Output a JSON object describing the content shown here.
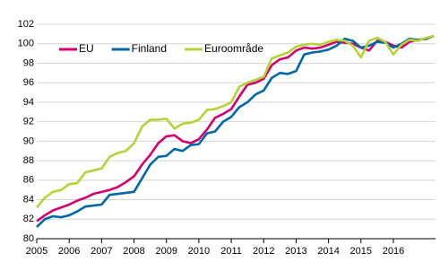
{
  "chart_data": {
    "type": "line",
    "x": [
      2005,
      2005.25,
      2005.5,
      2005.75,
      2006,
      2006.25,
      2006.5,
      2006.75,
      2007,
      2007.25,
      2007.5,
      2007.75,
      2008,
      2008.25,
      2008.5,
      2008.75,
      2009,
      2009.25,
      2009.5,
      2009.75,
      2010,
      2010.25,
      2010.5,
      2010.75,
      2011,
      2011.25,
      2011.5,
      2011.75,
      2012,
      2012.25,
      2012.5,
      2012.75,
      2013,
      2013.25,
      2013.5,
      2013.75,
      2014,
      2014.25,
      2014.5,
      2014.75,
      2015,
      2015.25,
      2015.5,
      2015.75,
      2016,
      2016.25,
      2016.5,
      2016.75,
      2017,
      2017.25
    ],
    "series": [
      {
        "name": "EU",
        "color": "#d4006f",
        "values": [
          81.8,
          82.4,
          82.9,
          83.2,
          83.5,
          83.9,
          84.2,
          84.6,
          84.8,
          85.0,
          85.3,
          85.8,
          86.4,
          87.6,
          88.6,
          89.8,
          90.5,
          90.6,
          90.0,
          89.8,
          90.2,
          91.2,
          92.4,
          92.8,
          93.3,
          94.6,
          95.8,
          96.0,
          96.4,
          97.8,
          98.4,
          98.6,
          99.3,
          99.6,
          99.5,
          99.6,
          99.9,
          100.2,
          100.1,
          100.0,
          99.6,
          99.3,
          100.3,
          100.2,
          99.8,
          99.6,
          100.2,
          100.4,
          100.5,
          100.8
        ]
      },
      {
        "name": "Finland",
        "color": "#0068a6",
        "values": [
          81.2,
          82.0,
          82.3,
          82.2,
          82.4,
          82.8,
          83.3,
          83.4,
          83.5,
          84.5,
          84.6,
          84.7,
          84.8,
          86.2,
          87.6,
          88.4,
          88.5,
          89.2,
          89.0,
          89.6,
          89.7,
          90.8,
          91.0,
          92.0,
          92.5,
          93.5,
          94.0,
          94.8,
          95.2,
          96.5,
          97.0,
          96.9,
          97.2,
          98.9,
          99.1,
          99.2,
          99.4,
          99.8,
          100.5,
          100.3,
          99.6,
          99.8,
          100.2,
          100.1,
          99.6,
          100.0,
          100.5,
          100.4,
          100.5,
          100.8
        ]
      },
      {
        "name": "Euroområde",
        "color": "#b5d334",
        "values": [
          83.2,
          84.2,
          84.8,
          85.0,
          85.6,
          85.7,
          86.8,
          87.0,
          87.2,
          88.4,
          88.8,
          89.0,
          89.8,
          91.5,
          92.2,
          92.2,
          92.3,
          91.3,
          91.8,
          91.9,
          92.2,
          93.2,
          93.3,
          93.6,
          94.0,
          95.6,
          96.0,
          96.3,
          96.6,
          98.5,
          98.8,
          99.1,
          99.7,
          99.9,
          100.0,
          99.9,
          100.2,
          100.4,
          100.3,
          99.8,
          98.6,
          100.3,
          100.6,
          100.2,
          98.9,
          99.9,
          100.4,
          100.3,
          100.6,
          100.8
        ]
      }
    ],
    "xlim": [
      2005,
      2017.3
    ],
    "xticks": [
      2005,
      2006,
      2007,
      2008,
      2009,
      2010,
      2011,
      2012,
      2013,
      2014,
      2015,
      2016
    ],
    "ylim": [
      80,
      102
    ],
    "yticks": [
      80,
      82,
      84,
      86,
      88,
      90,
      92,
      94,
      96,
      98,
      100,
      102
    ],
    "grid": true,
    "legend": "upper left"
  }
}
